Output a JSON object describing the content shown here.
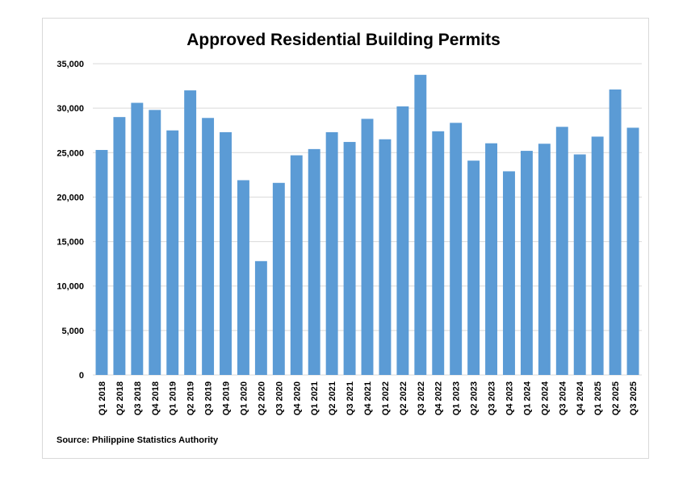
{
  "chart_data": {
    "type": "bar",
    "title": "Approved Residential Building Permits",
    "source": "Source: Philippine Statistics Authority",
    "xlabel": "",
    "ylabel": "",
    "ylim": [
      0,
      35000
    ],
    "yticks": [
      0,
      5000,
      10000,
      15000,
      20000,
      25000,
      30000,
      35000
    ],
    "ytick_labels": [
      "0",
      "5,000",
      "10,000",
      "15,000",
      "20,000",
      "25,000",
      "30,000",
      "35,000"
    ],
    "grid": true,
    "categories": [
      "Q1 2018",
      "Q2 2018",
      "Q3 2018",
      "Q4 2018",
      "Q1 2019",
      "Q2 2019",
      "Q3 2019",
      "Q4 2019",
      "Q1 2020",
      "Q2 2020",
      "Q3 2020",
      "Q4 2020",
      "Q1 2021",
      "Q2 2021",
      "Q3 2021",
      "Q4 2021",
      "Q1 2022",
      "Q2 2022",
      "Q3 2022",
      "Q4 2022",
      "Q1 2023",
      "Q2 2023",
      "Q3 2023",
      "Q4 2023",
      "Q1 2024",
      "Q2 2024",
      "Q3 2024",
      "Q4 2024",
      "Q1 2025",
      "Q2 2025",
      "Q3 2025"
    ],
    "values": [
      25300,
      29000,
      30600,
      29800,
      27500,
      32000,
      28900,
      27300,
      21900,
      12800,
      21600,
      24700,
      25400,
      27300,
      26200,
      28800,
      26500,
      30200,
      33750,
      27400,
      28350,
      24100,
      26050,
      22900,
      25200,
      26000,
      27900,
      24800,
      26800,
      32100,
      27800
    ],
    "bar_color": "#5b9bd5",
    "grid_color": "#d9d9d9"
  }
}
